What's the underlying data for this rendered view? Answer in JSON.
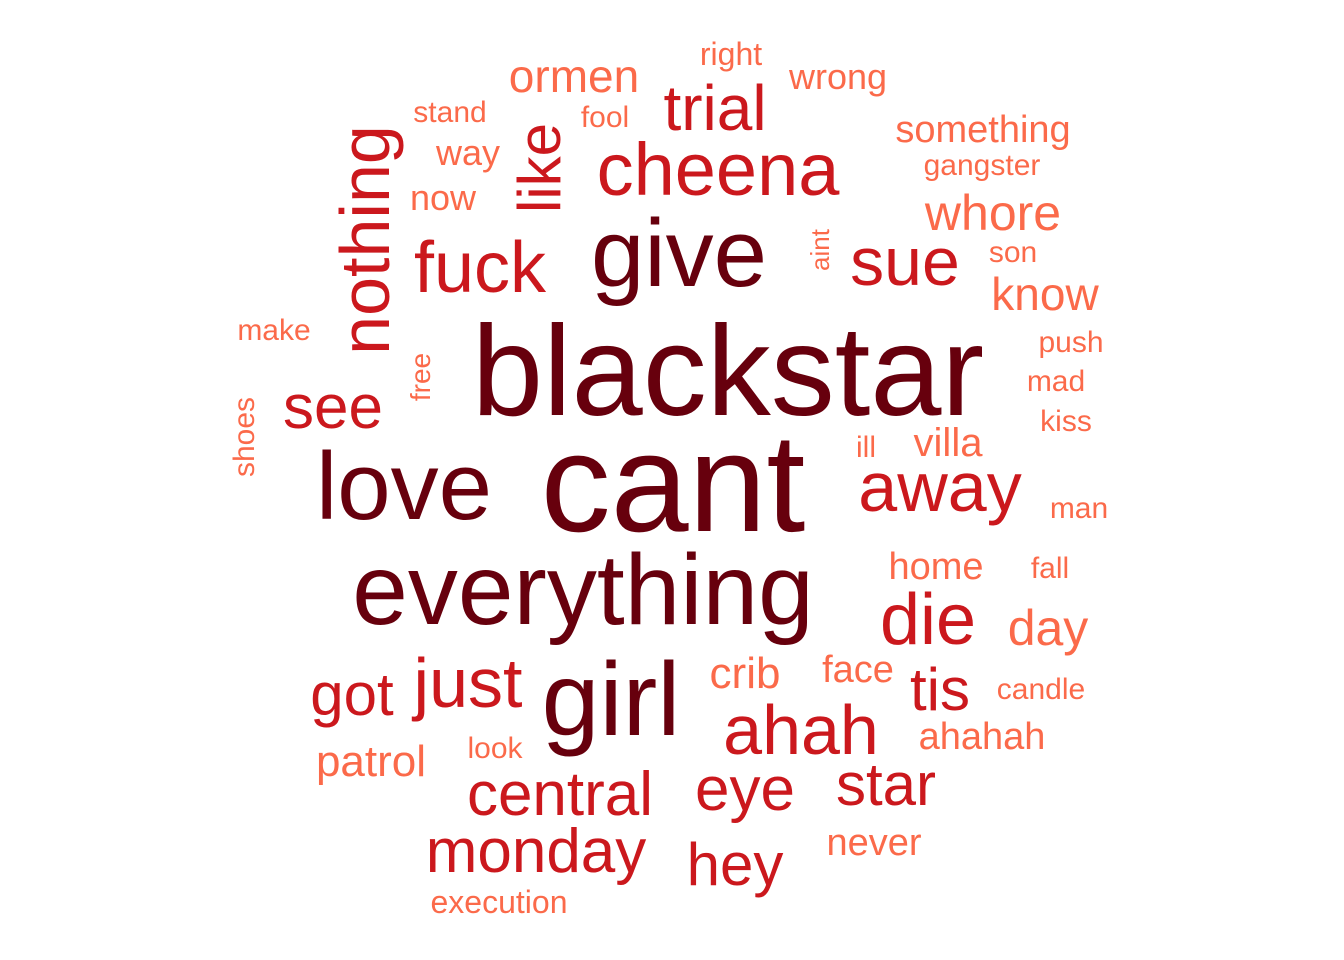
{
  "palette": {
    "darkest": "#67000d",
    "dark": "#a50f15",
    "medium": "#cb181d",
    "light": "#ef3b2c",
    "lightest": "#fb6a4a"
  },
  "words": [
    {
      "text": "blackstar",
      "tone": "darkest"
    },
    {
      "text": "cant",
      "tone": "darkest"
    },
    {
      "text": "everything",
      "tone": "darkest"
    },
    {
      "text": "girl",
      "tone": "darkest"
    },
    {
      "text": "give",
      "tone": "darkest"
    },
    {
      "text": "love",
      "tone": "darkest"
    },
    {
      "text": "cheena",
      "tone": "medium"
    },
    {
      "text": "fuck",
      "tone": "medium"
    },
    {
      "text": "nothing",
      "tone": "medium"
    },
    {
      "text": "sue",
      "tone": "medium"
    },
    {
      "text": "away",
      "tone": "medium"
    },
    {
      "text": "die",
      "tone": "medium"
    },
    {
      "text": "ahah",
      "tone": "medium"
    },
    {
      "text": "just",
      "tone": "medium"
    },
    {
      "text": "monday",
      "tone": "medium"
    },
    {
      "text": "central",
      "tone": "medium"
    },
    {
      "text": "trial",
      "tone": "medium"
    },
    {
      "text": "like",
      "tone": "medium"
    },
    {
      "text": "see",
      "tone": "medium"
    },
    {
      "text": "got",
      "tone": "medium"
    },
    {
      "text": "eye",
      "tone": "medium"
    },
    {
      "text": "star",
      "tone": "medium"
    },
    {
      "text": "hey",
      "tone": "medium"
    },
    {
      "text": "tis",
      "tone": "medium"
    },
    {
      "text": "ormen",
      "tone": "lightest"
    },
    {
      "text": "whore",
      "tone": "lightest"
    },
    {
      "text": "know",
      "tone": "lightest"
    },
    {
      "text": "villa",
      "tone": "lightest"
    },
    {
      "text": "day",
      "tone": "lightest"
    },
    {
      "text": "crib",
      "tone": "lightest"
    },
    {
      "text": "patrol",
      "tone": "lightest"
    },
    {
      "text": "home",
      "tone": "lightest"
    },
    {
      "text": "face",
      "tone": "lightest"
    },
    {
      "text": "ahahah",
      "tone": "lightest"
    },
    {
      "text": "never",
      "tone": "lightest"
    },
    {
      "text": "something",
      "tone": "lightest"
    },
    {
      "text": "wrong",
      "tone": "lightest"
    },
    {
      "text": "right",
      "tone": "lightest"
    },
    {
      "text": "stand",
      "tone": "lightest"
    },
    {
      "text": "fool",
      "tone": "lightest"
    },
    {
      "text": "way",
      "tone": "lightest"
    },
    {
      "text": "now",
      "tone": "lightest"
    },
    {
      "text": "gangster",
      "tone": "lightest"
    },
    {
      "text": "son",
      "tone": "lightest"
    },
    {
      "text": "aint",
      "tone": "lightest"
    },
    {
      "text": "make",
      "tone": "lightest"
    },
    {
      "text": "free",
      "tone": "lightest"
    },
    {
      "text": "push",
      "tone": "lightest"
    },
    {
      "text": "mad",
      "tone": "lightest"
    },
    {
      "text": "kiss",
      "tone": "lightest"
    },
    {
      "text": "shoes",
      "tone": "lightest"
    },
    {
      "text": "ill",
      "tone": "lightest"
    },
    {
      "text": "man",
      "tone": "lightest"
    },
    {
      "text": "fall",
      "tone": "lightest"
    },
    {
      "text": "candle",
      "tone": "lightest"
    },
    {
      "text": "look",
      "tone": "lightest"
    },
    {
      "text": "execution",
      "tone": "lightest"
    }
  ]
}
